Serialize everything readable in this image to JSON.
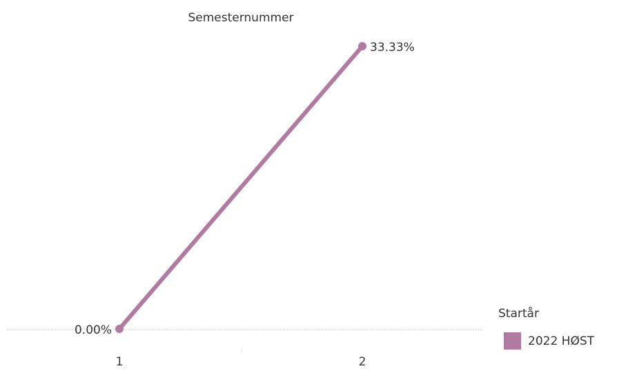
{
  "chart_data": {
    "type": "line",
    "title": "Semesternummer",
    "categories": [
      "1",
      "2"
    ],
    "series": [
      {
        "name": "2022 HØST",
        "color": "#b07aa1",
        "values": [
          0,
          33.33
        ],
        "value_labels": [
          "0.00%",
          "33.33%"
        ]
      }
    ],
    "legend_title": "Startår",
    "legend": "right"
  }
}
